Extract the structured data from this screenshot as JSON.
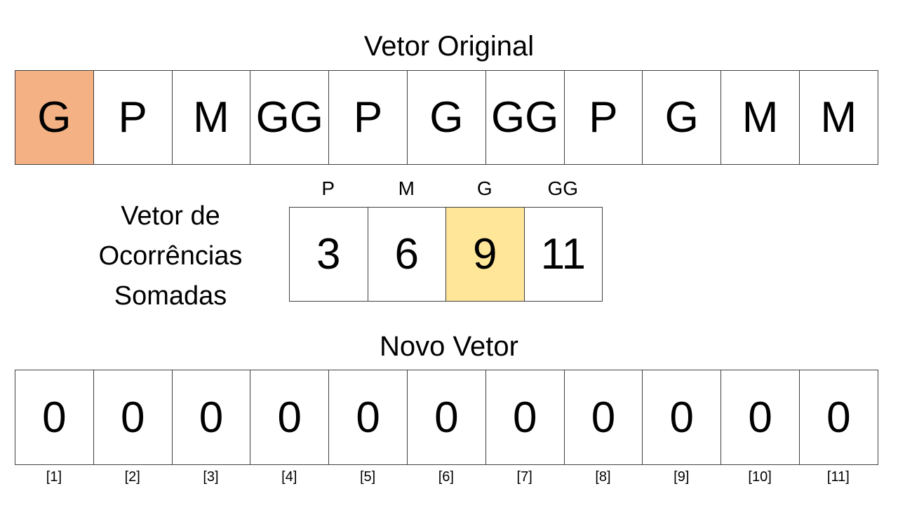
{
  "original": {
    "title": "Vetor Original",
    "cells": [
      "G",
      "P",
      "M",
      "GG",
      "P",
      "G",
      "GG",
      "P",
      "G",
      "M",
      "M"
    ],
    "highlight_index": 0,
    "highlight_color": "#f4b183"
  },
  "occurrences": {
    "label_lines": [
      "Vetor de",
      "Ocorrências",
      "Somadas"
    ],
    "headers": [
      "P",
      "M",
      "G",
      "GG"
    ],
    "values": [
      "3",
      "6",
      "9",
      "11"
    ],
    "highlight_index": 2,
    "highlight_color": "#ffe699"
  },
  "new_vector": {
    "title": "Novo Vetor",
    "cells": [
      "0",
      "0",
      "0",
      "0",
      "0",
      "0",
      "0",
      "0",
      "0",
      "0",
      "0"
    ],
    "indices": [
      "[1]",
      "[2]",
      "[3]",
      "[4]",
      "[5]",
      "[6]",
      "[7]",
      "[8]",
      "[9]",
      "[10]",
      "[11]"
    ]
  },
  "colors": {
    "border": "#404040",
    "background": "#ffffff"
  }
}
